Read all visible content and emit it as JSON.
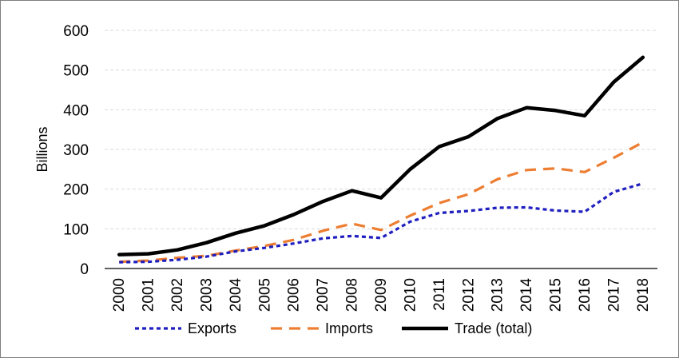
{
  "chart_data": {
    "type": "line",
    "title": "",
    "xlabel": "",
    "ylabel": "Billions",
    "ylim": [
      0,
      600
    ],
    "yticks": [
      0,
      100,
      200,
      300,
      400,
      500,
      600
    ],
    "grid": true,
    "legend_position": "bottom",
    "categories": [
      "2000",
      "2001",
      "2002",
      "2003",
      "2004",
      "2005",
      "2006",
      "2007",
      "2008",
      "2009",
      "2010",
      "2011",
      "2012",
      "2013",
      "2014",
      "2015",
      "2016",
      "2017",
      "2018"
    ],
    "series": [
      {
        "name": "Exports",
        "style": "dotted",
        "color": "#1f1fbf",
        "values": [
          16,
          17,
          22,
          30,
          43,
          52,
          63,
          76,
          82,
          77,
          118,
          140,
          145,
          153,
          154,
          146,
          143,
          193,
          214
        ]
      },
      {
        "name": "Imports",
        "style": "dashed",
        "color": "#ed7d31",
        "values": [
          17,
          20,
          27,
          32,
          45,
          57,
          72,
          95,
          113,
          97,
          133,
          165,
          187,
          225,
          248,
          252,
          243,
          279,
          318
        ]
      },
      {
        "name": "Trade (total)",
        "style": "solid",
        "color": "#000000",
        "values": [
          35,
          37,
          47,
          65,
          89,
          108,
          136,
          169,
          196,
          178,
          250,
          307,
          332,
          378,
          405,
          398,
          385,
          470,
          532
        ]
      }
    ]
  }
}
